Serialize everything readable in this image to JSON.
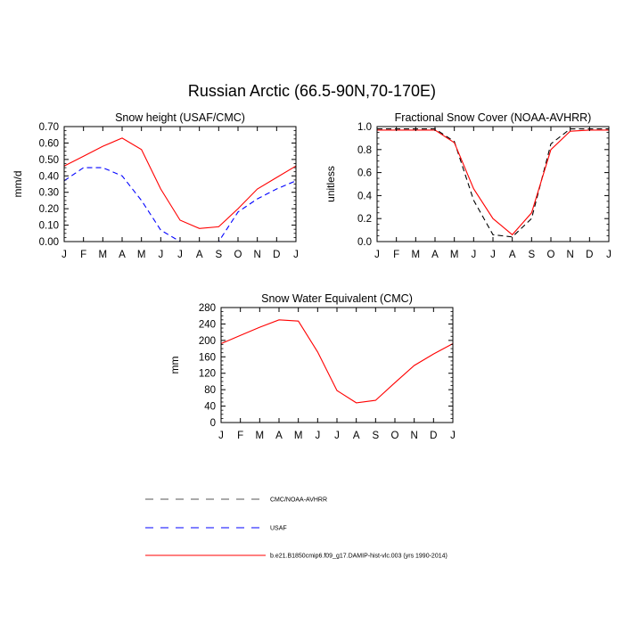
{
  "figure_title": "Russian Arctic (66.5-90N,70-170E)",
  "legend": {
    "items": [
      {
        "label": "CMC/NOAA-AVHRR",
        "color": "#000000",
        "dash": "dashed"
      },
      {
        "label": "USAF",
        "color": "#0000ff",
        "dash": "dashed"
      },
      {
        "label": "b.e21.B1850cmip6.f09_g17.DAMIP-hist-vlc.003 (yrs 1990-2014)",
        "color": "#ff0000",
        "dash": "solid"
      }
    ]
  },
  "chart_data": [
    {
      "type": "line",
      "title": "Snow height (USAF/CMC)",
      "xlabel": "",
      "ylabel": "mm/d",
      "categories": [
        "J",
        "F",
        "M",
        "A",
        "M",
        "J",
        "J",
        "A",
        "S",
        "O",
        "N",
        "D",
        "J"
      ],
      "ylim": [
        0,
        0.7
      ],
      "yticks": [
        0,
        0.1,
        0.2,
        0.3,
        0.4,
        0.5,
        0.6,
        0.7
      ],
      "ytick_labels": [
        "0.00",
        "0.10",
        "0.20",
        "0.30",
        "0.40",
        "0.50",
        "0.60",
        "0.70"
      ],
      "series": [
        {
          "name": "CMC/NOAA-AVHRR",
          "color": "#000000",
          "dash": "dashed",
          "values": [
            0,
            0,
            0,
            0,
            0,
            0,
            0,
            0,
            0,
            0,
            0,
            0,
            0
          ]
        },
        {
          "name": "USAF",
          "color": "#0000ff",
          "dash": "dashed",
          "values": [
            0.37,
            0.45,
            0.45,
            0.4,
            0.25,
            0.07,
            0.0,
            0.0,
            0.0,
            0.18,
            0.26,
            0.32,
            0.37
          ]
        },
        {
          "name": "b.e21.B1850cmip6.f09_g17.DAMIP-hist-vlc.003 (yrs 1990-2014)",
          "color": "#ff0000",
          "dash": "solid",
          "values": [
            0.46,
            0.52,
            0.58,
            0.63,
            0.56,
            0.32,
            0.13,
            0.08,
            0.09,
            0.2,
            0.32,
            0.39,
            0.46
          ]
        }
      ]
    },
    {
      "type": "line",
      "title": "Fractional Snow Cover (NOAA-AVHRR)",
      "xlabel": "",
      "ylabel": "unitless",
      "categories": [
        "J",
        "F",
        "M",
        "A",
        "M",
        "J",
        "J",
        "A",
        "S",
        "O",
        "N",
        "D",
        "J"
      ],
      "ylim": [
        0,
        1.0
      ],
      "yticks": [
        0,
        0.2,
        0.4,
        0.6,
        0.8,
        1.0
      ],
      "ytick_labels": [
        "0.0",
        "0.2",
        "0.4",
        "0.6",
        "0.8",
        "1.0"
      ],
      "series": [
        {
          "name": "CMC/NOAA-AVHRR",
          "color": "#000000",
          "dash": "dashed",
          "values": [
            0.98,
            0.98,
            0.98,
            0.98,
            0.87,
            0.36,
            0.06,
            0.04,
            0.2,
            0.85,
            0.98,
            0.98,
            0.98
          ]
        },
        {
          "name": "b.e21.B1850cmip6.f09_g17.DAMIP-hist-vlc.003 (yrs 1990-2014)",
          "color": "#ff0000",
          "dash": "solid",
          "values": [
            0.97,
            0.97,
            0.97,
            0.97,
            0.86,
            0.46,
            0.2,
            0.06,
            0.25,
            0.8,
            0.96,
            0.97,
            0.97
          ]
        }
      ]
    },
    {
      "type": "line",
      "title": "Snow Water Equivalent (CMC)",
      "xlabel": "",
      "ylabel": "mm",
      "categories": [
        "J",
        "F",
        "M",
        "A",
        "M",
        "J",
        "J",
        "A",
        "S",
        "O",
        "N",
        "D",
        "J"
      ],
      "ylim": [
        0,
        280
      ],
      "yticks": [
        0,
        40,
        80,
        120,
        160,
        200,
        240,
        280
      ],
      "ytick_labels": [
        "0",
        "40",
        "80",
        "120",
        "160",
        "200",
        "240",
        "280"
      ],
      "series": [
        {
          "name": "CMC/NOAA-AVHRR",
          "color": "#000000",
          "dash": "dashed",
          "values": [
            0,
            0,
            0,
            0,
            0,
            0,
            0,
            0,
            0,
            0,
            0,
            0,
            0
          ]
        },
        {
          "name": "b.e21.B1850cmip6.f09_g17.DAMIP-hist-vlc.003 (yrs 1990-2014)",
          "color": "#ff0000",
          "dash": "solid",
          "values": [
            192,
            212,
            232,
            250,
            247,
            172,
            78,
            48,
            54,
            97,
            139,
            167,
            192
          ]
        }
      ]
    }
  ]
}
